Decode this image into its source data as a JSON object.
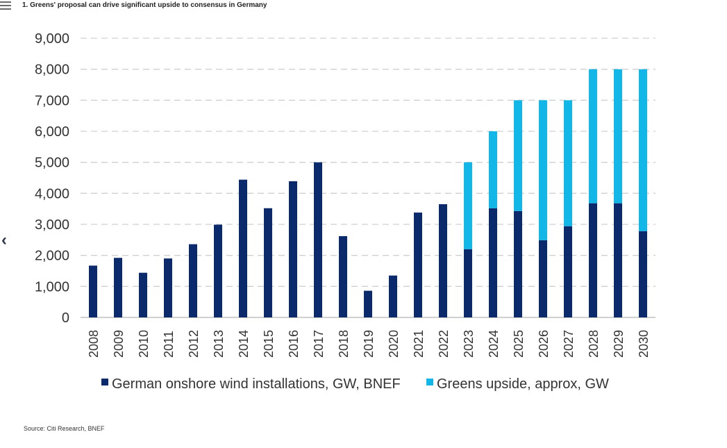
{
  "header": {
    "menu_icon": "hamburger-menu-icon",
    "back_icon": "chevron-left-icon",
    "back_glyph": "‹"
  },
  "chart_data": {
    "type": "bar",
    "stacked": true,
    "title": "1. Greens' proposal can drive significant upside to consensus in Germany",
    "xlabel": "",
    "ylabel": "",
    "ylim": [
      0,
      9000
    ],
    "yticks": [
      0,
      1000,
      2000,
      3000,
      4000,
      5000,
      6000,
      7000,
      8000,
      9000
    ],
    "ytick_labels": [
      "0",
      "1,000",
      "2,000",
      "3,000",
      "4,000",
      "5,000",
      "6,000",
      "7,000",
      "8,000",
      "9,000"
    ],
    "grid": true,
    "legend_position": "bottom",
    "categories": [
      "2008",
      "2009",
      "2010",
      "2011",
      "2012",
      "2013",
      "2014",
      "2015",
      "2016",
      "2017",
      "2018",
      "2019",
      "2020",
      "2021",
      "2022",
      "2023",
      "2024",
      "2025",
      "2026",
      "2027",
      "2028",
      "2029",
      "2030"
    ],
    "series": [
      {
        "name": "German onshore wind installations, GW, BNEF",
        "color": "#0b2a6b",
        "values": [
          1670,
          1920,
          1440,
          1900,
          2360,
          2990,
          4440,
          3520,
          4390,
          5000,
          2620,
          860,
          1350,
          3380,
          3650,
          2200,
          3520,
          3430,
          2490,
          2940,
          3680,
          3680,
          2780
        ]
      },
      {
        "name": "Greens upside, approx, GW",
        "color": "#12b7e8",
        "values": [
          0,
          0,
          0,
          0,
          0,
          0,
          0,
          0,
          0,
          0,
          0,
          0,
          0,
          0,
          0,
          2800,
          2480,
          3570,
          4510,
          4060,
          4320,
          4320,
          5220
        ]
      }
    ]
  },
  "footer": {
    "source": "Source: Citi Research, BNEF"
  }
}
